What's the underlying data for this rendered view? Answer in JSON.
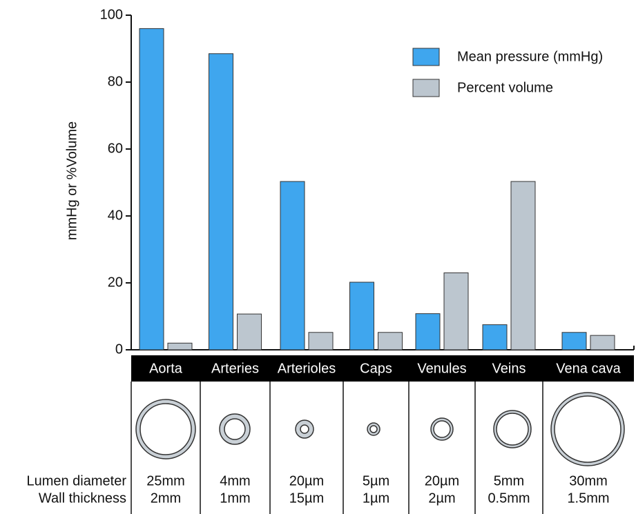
{
  "chart_data": {
    "type": "bar",
    "y_label": "mmHg or %Volume",
    "categories": [
      "Aorta",
      "Arteries",
      "Arterioles",
      "Caps",
      "Venules",
      "Veins",
      "Vena cava"
    ],
    "series": [
      {
        "name": "Mean pressure (mmHg)",
        "color": "#3fa6ee",
        "values": [
          96,
          88.5,
          50.3,
          20.2,
          10.8,
          7.5,
          5.2
        ]
      },
      {
        "name": "Percent volume",
        "color": "#bcc6cf",
        "values": [
          2,
          10.7,
          5.2,
          5.2,
          23,
          50.3,
          4.3
        ]
      }
    ],
    "ylim": [
      0,
      100
    ],
    "yticks": [
      0,
      20,
      40,
      60,
      80,
      100
    ],
    "grid": false,
    "legend": "upper right"
  },
  "table": {
    "row_labels": [
      "Lumen diameter",
      "Wall thickness"
    ],
    "lumen_diameter": [
      "25mm",
      "4mm",
      "20µm",
      "5µm",
      "20µm",
      "5mm",
      "30mm"
    ],
    "wall_thickness": [
      "2mm",
      "1mm",
      "15µm",
      "1µm",
      "2µm",
      "0.5mm",
      "1.5mm"
    ]
  }
}
